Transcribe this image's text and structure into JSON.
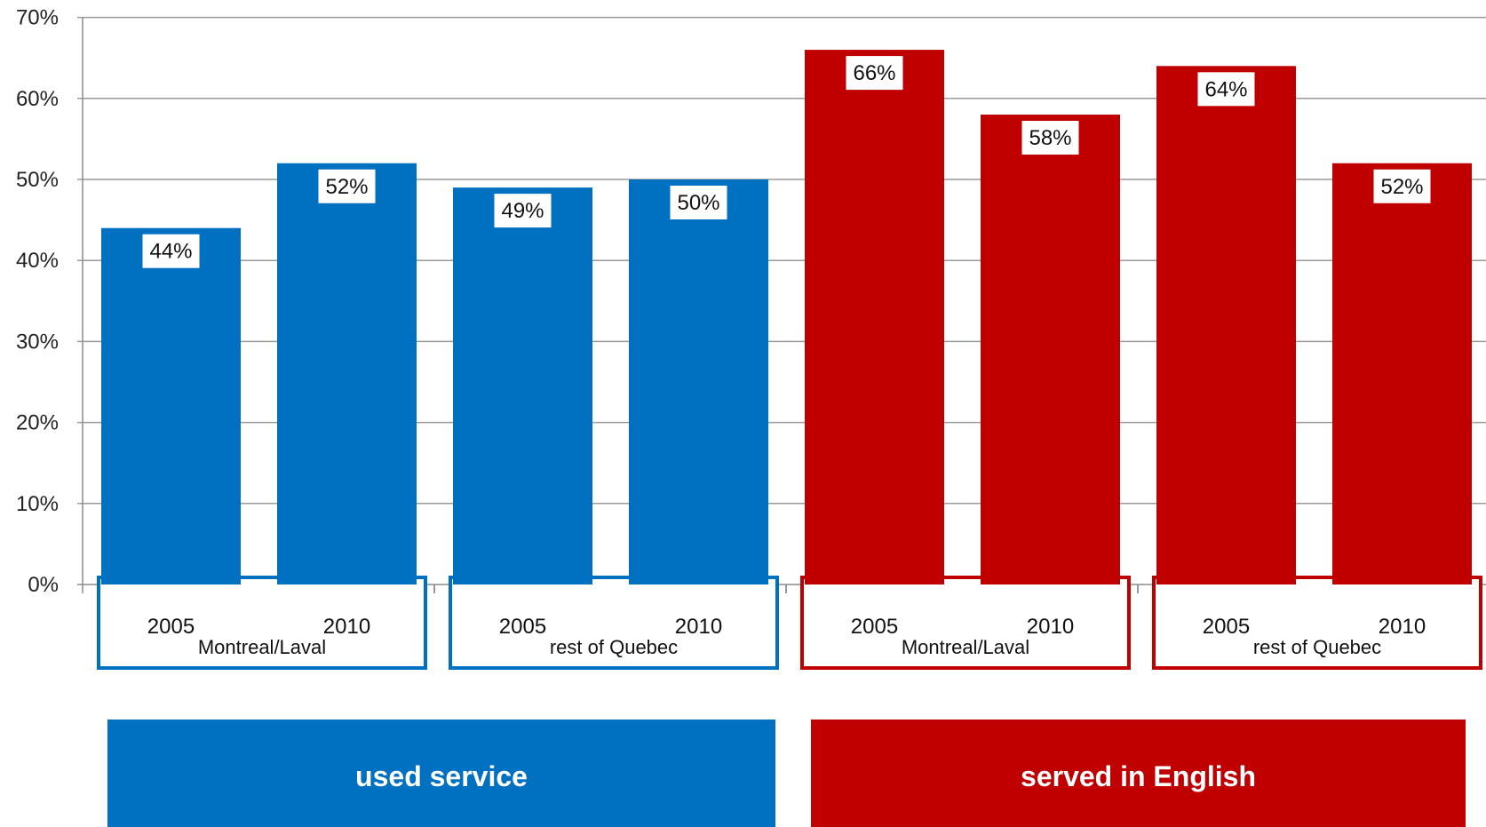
{
  "chart_data": {
    "type": "bar",
    "y_ticks": [
      "0%",
      "10%",
      "20%",
      "30%",
      "40%",
      "50%",
      "60%",
      "70%"
    ],
    "ylim": [
      0,
      70
    ],
    "grid": true,
    "sections": [
      {
        "label": "used service",
        "color": "#0070C0",
        "groups": [
          {
            "label": "Montreal/Laval",
            "bars": [
              {
                "year": "2005",
                "value": 44,
                "label": "44%"
              },
              {
                "year": "2010",
                "value": 52,
                "label": "52%"
              }
            ]
          },
          {
            "label": "rest of Quebec",
            "bars": [
              {
                "year": "2005",
                "value": 49,
                "label": "49%"
              },
              {
                "year": "2010",
                "value": 50,
                "label": "50%"
              }
            ]
          }
        ]
      },
      {
        "label": "served in English",
        "color": "#C00000",
        "groups": [
          {
            "label": "Montreal/Laval",
            "bars": [
              {
                "year": "2005",
                "value": 66,
                "label": "66%"
              },
              {
                "year": "2010",
                "value": 58,
                "label": "58%"
              }
            ]
          },
          {
            "label": "rest of Quebec",
            "bars": [
              {
                "year": "2005",
                "value": 64,
                "label": "64%"
              },
              {
                "year": "2010",
                "value": 52,
                "label": "52%"
              }
            ]
          }
        ]
      }
    ]
  }
}
